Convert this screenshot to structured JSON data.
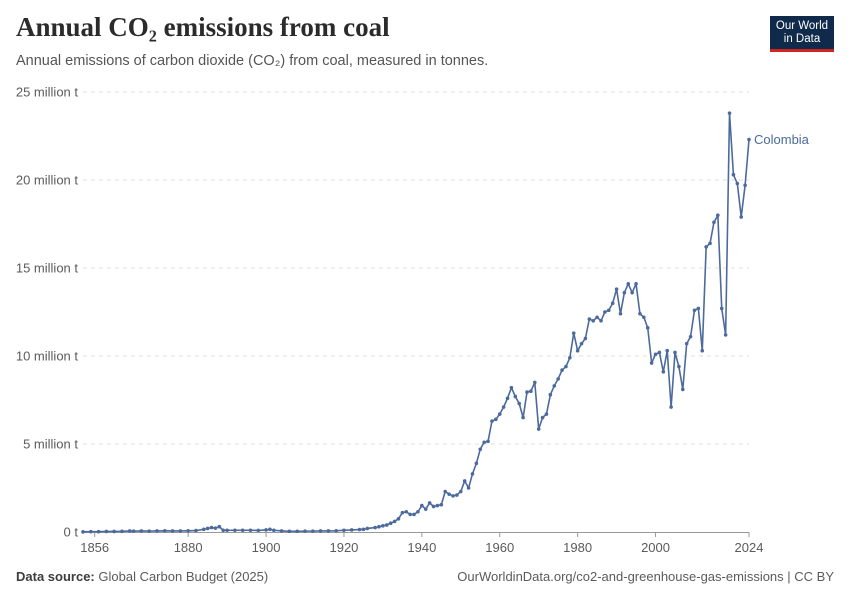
{
  "header": {
    "title": "Annual CO₂ emissions from coal",
    "subtitle": "Annual emissions of carbon dioxide (CO₂) from coal, measured in tonnes."
  },
  "logo": {
    "line1": "Our World",
    "line2": "in Data"
  },
  "footer": {
    "source_label": "Data source:",
    "source_text": "Global Carbon Budget (2025)",
    "url_license": "OurWorldinData.org/co2-and-greenhouse-gas-emissions | CC BY"
  },
  "colors": {
    "series": "#4c6a9c",
    "grid": "#dddddd",
    "text": "#5b5b5b"
  },
  "chart_data": {
    "type": "line",
    "title": "Annual CO₂ emissions from coal",
    "xlabel": "",
    "ylabel": "",
    "xlim": [
      1853,
      2024
    ],
    "ylim": [
      0,
      25000000
    ],
    "yticks": [
      {
        "value": 0,
        "label": "0 t"
      },
      {
        "value": 5000000,
        "label": "5 million t"
      },
      {
        "value": 10000000,
        "label": "10 million t"
      },
      {
        "value": 15000000,
        "label": "15 million t"
      },
      {
        "value": 20000000,
        "label": "20 million t"
      },
      {
        "value": 25000000,
        "label": "25 million t"
      }
    ],
    "xticks": [
      {
        "value": 1856,
        "label": "1856"
      },
      {
        "value": 1880,
        "label": "1880"
      },
      {
        "value": 1900,
        "label": "1900"
      },
      {
        "value": 1920,
        "label": "1920"
      },
      {
        "value": 1940,
        "label": "1940"
      },
      {
        "value": 1960,
        "label": "1960"
      },
      {
        "value": 1980,
        "label": "1980"
      },
      {
        "value": 2000,
        "label": "2000"
      },
      {
        "value": 2024,
        "label": "2024"
      }
    ],
    "grid": true,
    "legend": "end-of-line label",
    "series": [
      {
        "name": "Colombia",
        "x": [
          1853,
          1855,
          1857,
          1859,
          1861,
          1863,
          1865,
          1866,
          1868,
          1870,
          1872,
          1874,
          1876,
          1878,
          1880,
          1882,
          1884,
          1885,
          1886,
          1887,
          1888,
          1889,
          1890,
          1892,
          1894,
          1896,
          1898,
          1900,
          1901,
          1902,
          1904,
          1906,
          1908,
          1910,
          1912,
          1914,
          1916,
          1918,
          1920,
          1922,
          1924,
          1925,
          1926,
          1928,
          1929,
          1930,
          1931,
          1932,
          1933,
          1934,
          1935,
          1936,
          1937,
          1938,
          1939,
          1940,
          1941,
          1942,
          1943,
          1944,
          1945,
          1946,
          1947,
          1948,
          1949,
          1950,
          1951,
          1952,
          1953,
          1954,
          1955,
          1956,
          1957,
          1958,
          1959,
          1960,
          1961,
          1962,
          1963,
          1964,
          1965,
          1966,
          1967,
          1968,
          1969,
          1970,
          1971,
          1972,
          1973,
          1974,
          1975,
          1976,
          1977,
          1978,
          1979,
          1980,
          1981,
          1982,
          1983,
          1984,
          1985,
          1986,
          1987,
          1988,
          1989,
          1990,
          1991,
          1992,
          1993,
          1994,
          1995,
          1996,
          1997,
          1998,
          1999,
          2000,
          2001,
          2002,
          2003,
          2004,
          2005,
          2006,
          2007,
          2008,
          2009,
          2010,
          2011,
          2012,
          2013,
          2014,
          2015,
          2016,
          2017,
          2018,
          2019,
          2020,
          2021,
          2022,
          2023,
          2024
        ],
        "values": [
          10000,
          20000,
          20000,
          30000,
          30000,
          40000,
          60000,
          50000,
          60000,
          50000,
          60000,
          70000,
          60000,
          60000,
          70000,
          80000,
          150000,
          200000,
          250000,
          220000,
          300000,
          100000,
          100000,
          100000,
          100000,
          100000,
          90000,
          120000,
          150000,
          100000,
          60000,
          40000,
          40000,
          50000,
          50000,
          60000,
          60000,
          70000,
          100000,
          120000,
          140000,
          150000,
          200000,
          250000,
          300000,
          350000,
          400000,
          500000,
          600000,
          750000,
          1100000,
          1150000,
          1000000,
          1000000,
          1150000,
          1500000,
          1300000,
          1650000,
          1450000,
          1500000,
          1550000,
          2300000,
          2150000,
          2050000,
          2100000,
          2300000,
          2900000,
          2500000,
          3300000,
          3900000,
          4700000,
          5100000,
          5150000,
          6300000,
          6400000,
          6700000,
          7100000,
          7600000,
          8200000,
          7700000,
          7300000,
          6500000,
          7950000,
          8000000,
          8500000,
          5850000,
          6500000,
          6700000,
          7800000,
          8300000,
          8700000,
          9200000,
          9400000,
          9900000,
          11300000,
          10300000,
          10700000,
          11000000,
          12100000,
          12000000,
          12200000,
          12000000,
          12500000,
          12600000,
          13000000,
          13800000,
          12400000,
          13600000,
          14100000,
          13600000,
          14100000,
          12400000,
          12200000,
          11600000,
          9600000,
          10100000,
          10200000,
          9100000,
          10300000,
          7100000,
          10200000,
          9400000,
          8100000,
          10700000,
          11100000,
          12600000,
          12700000,
          10300000,
          16200000,
          16400000,
          17600000,
          18000000,
          12700000,
          11200000,
          23800000,
          20300000,
          19800000,
          17900000,
          19700000,
          22300000
        ]
      }
    ]
  }
}
